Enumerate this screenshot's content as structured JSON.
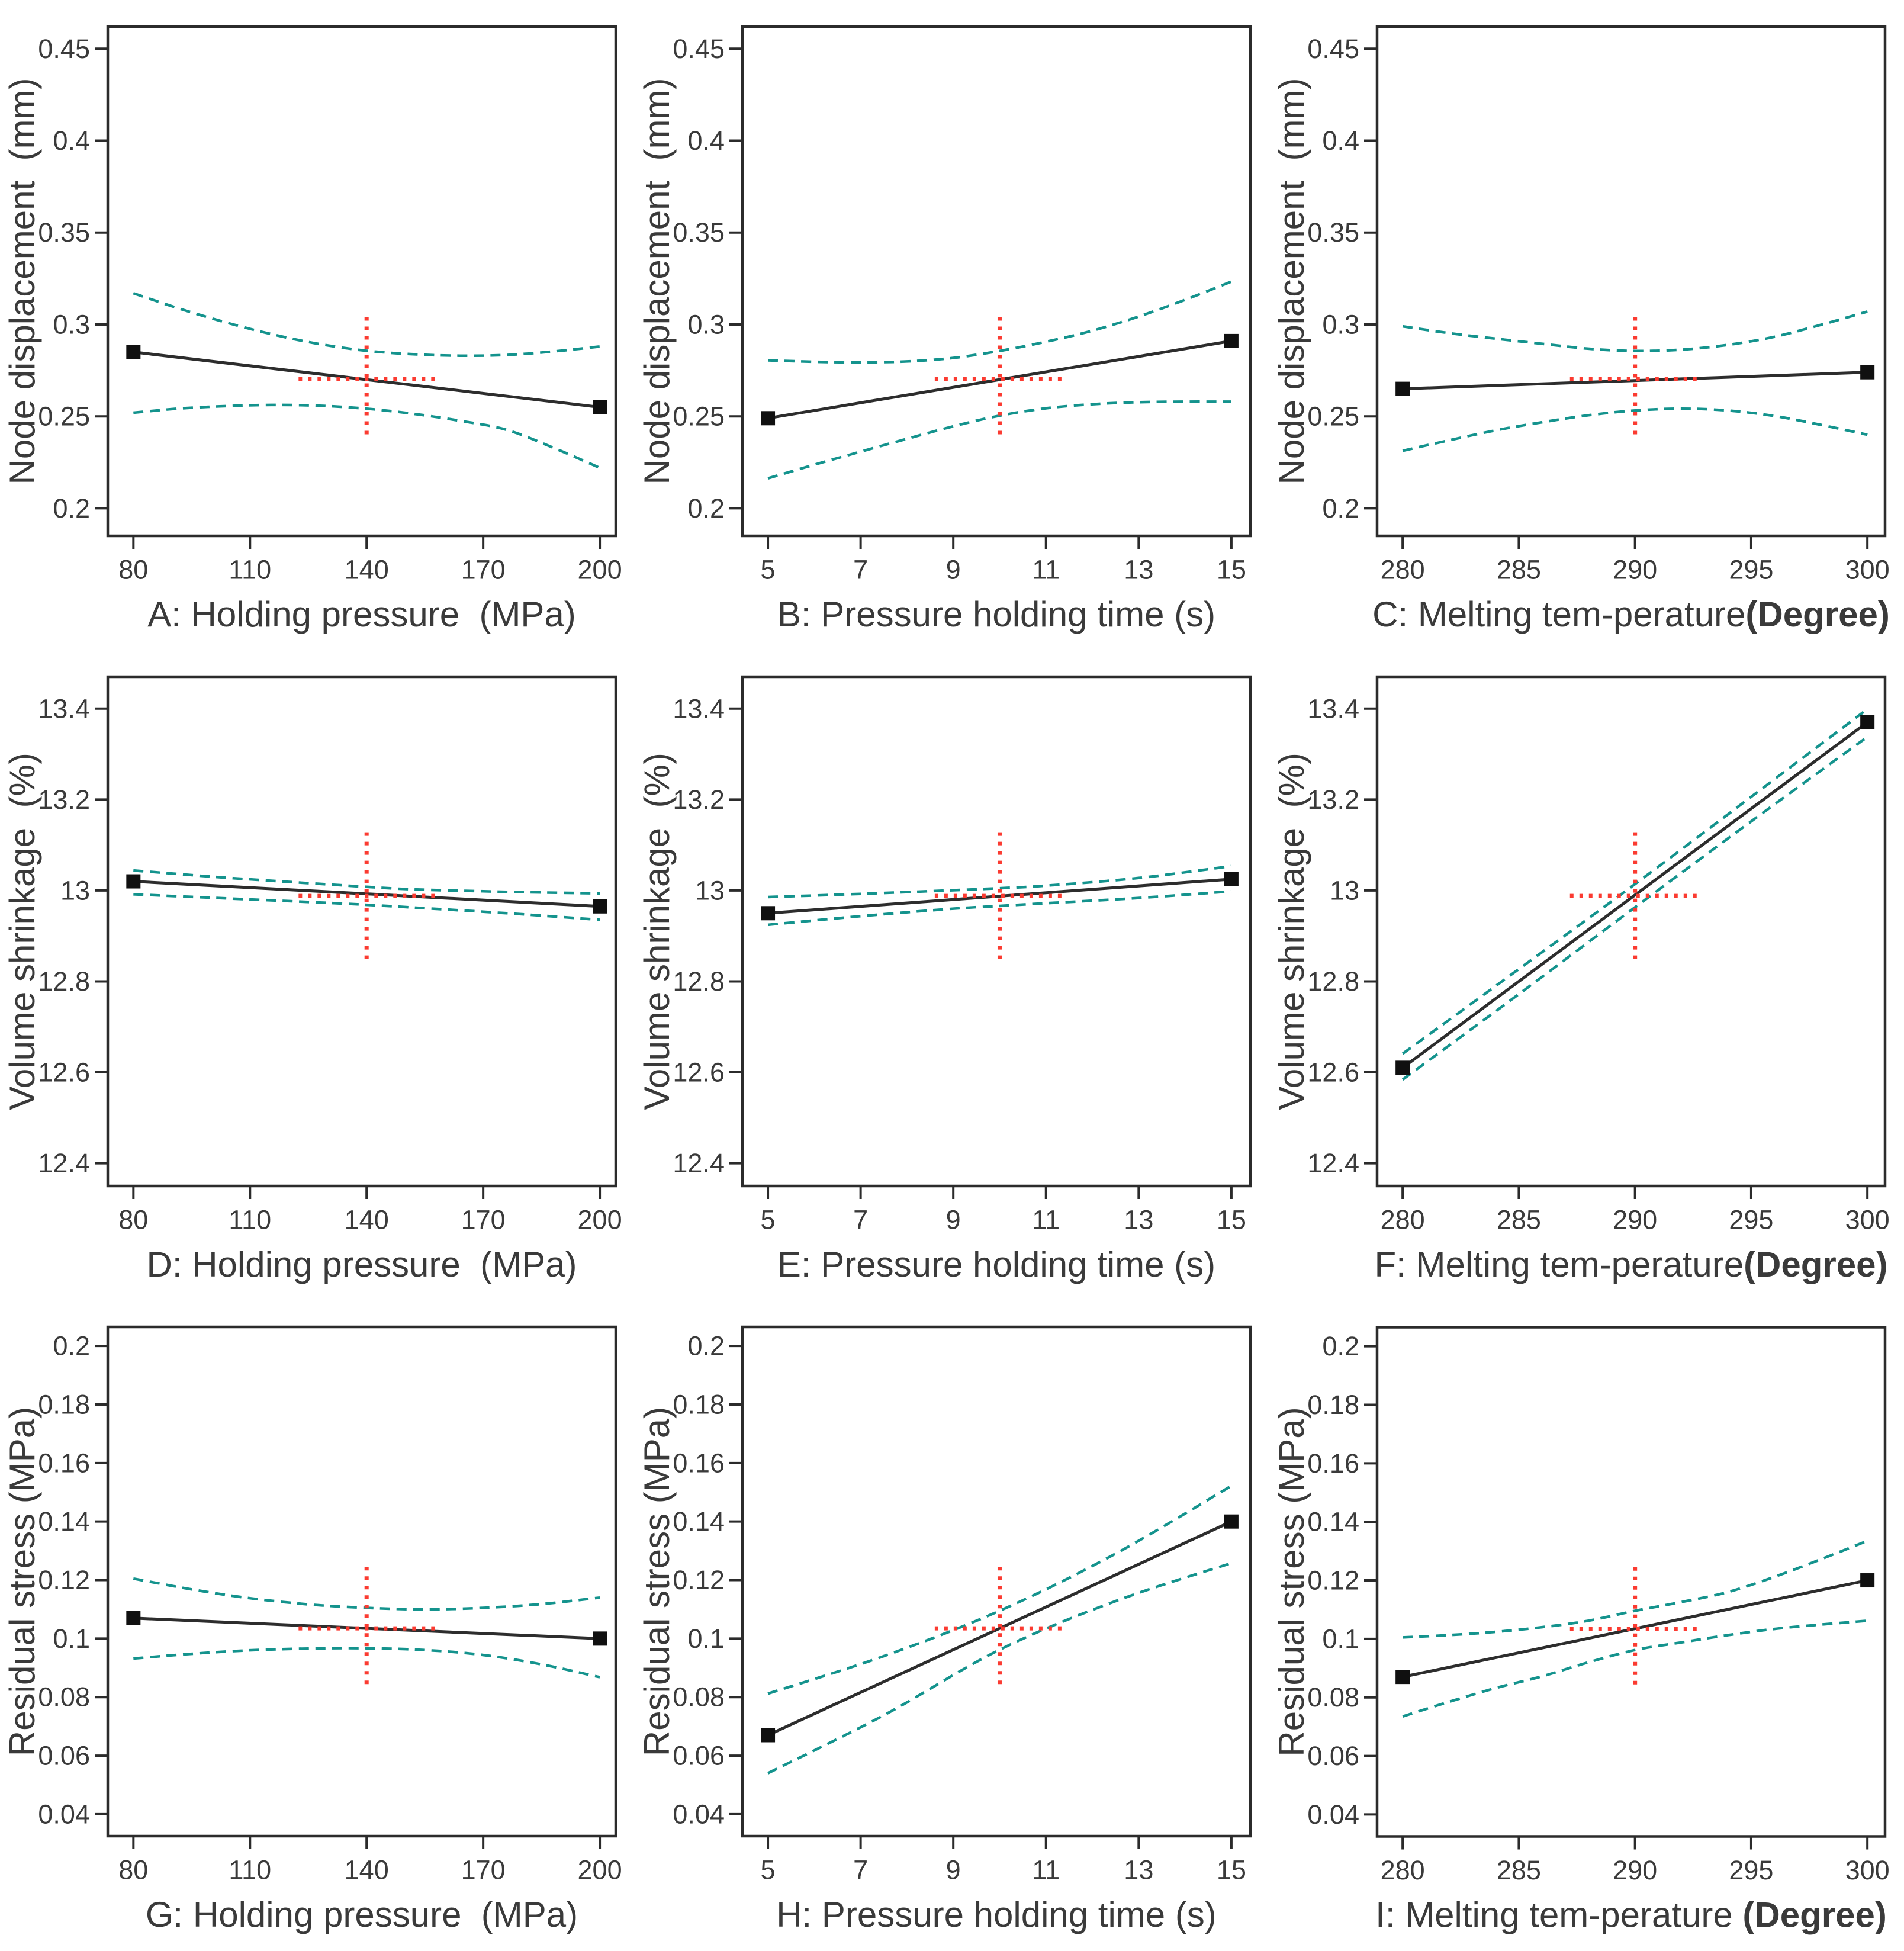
{
  "colors": {
    "background": "#ffffff",
    "axis": "#2b2b2b",
    "text": "#3a3a3a",
    "effect_line": "#2d2d2d",
    "marker": "#101010",
    "confidence_band": "#14938d",
    "crosshair": "#fb3b31"
  },
  "chart_data": [
    {
      "id": "A",
      "type": "line",
      "xlabel": "A: Holding pressure  (MPa)",
      "xlabel_bold": "",
      "ylabel": "Node displacement  (mm)",
      "xlim": [
        73.4,
        204.1
      ],
      "ylim": [
        0.185,
        0.462
      ],
      "xticks": [
        80,
        110,
        140,
        170,
        200
      ],
      "yticks": [
        [
          "0.2",
          0.2
        ],
        [
          "0.25",
          0.25
        ],
        [
          "0.3",
          0.3
        ],
        [
          "0.35",
          0.35
        ],
        [
          "0.4",
          0.4
        ],
        [
          "0.45",
          0.45
        ]
      ],
      "effect_line": {
        "x": [
          80,
          200
        ],
        "y": [
          0.285,
          0.255
        ]
      },
      "ci_upper": [
        [
          80,
          0.317
        ],
        [
          92,
          0.3085
        ],
        [
          104,
          0.301
        ],
        [
          116,
          0.2945
        ],
        [
          128,
          0.2893
        ],
        [
          140,
          0.2857
        ],
        [
          152,
          0.2838
        ],
        [
          164,
          0.283
        ],
        [
          176,
          0.2834
        ],
        [
          188,
          0.2853
        ],
        [
          200,
          0.288
        ]
      ],
      "ci_lower": [
        [
          80,
          0.252
        ],
        [
          92,
          0.2543
        ],
        [
          104,
          0.2556
        ],
        [
          116,
          0.2562
        ],
        [
          128,
          0.2558
        ],
        [
          140,
          0.2542
        ],
        [
          152,
          0.2514
        ],
        [
          164,
          0.2476
        ],
        [
          176,
          0.2427
        ],
        [
          188,
          0.233
        ],
        [
          200,
          0.222
        ]
      ],
      "center": {
        "x": 140,
        "y": 0.2705,
        "half_width": 17.5,
        "half_height": 0.0335
      }
    },
    {
      "id": "B",
      "type": "line",
      "xlabel": "B: Pressure holding time (s)",
      "xlabel_bold": "",
      "ylabel": "Node displacement  (mm)",
      "xlim": [
        4.45,
        15.41
      ],
      "ylim": [
        0.185,
        0.462
      ],
      "xticks": [
        5,
        7,
        9,
        11,
        13,
        15
      ],
      "yticks": [
        [
          "0.2",
          0.2
        ],
        [
          "0.25",
          0.25
        ],
        [
          "0.3",
          0.3
        ],
        [
          "0.35",
          0.35
        ],
        [
          "0.4",
          0.4
        ],
        [
          "0.45",
          0.45
        ]
      ],
      "effect_line": {
        "x": [
          5,
          15
        ],
        "y": [
          0.249,
          0.291
        ]
      },
      "ci_upper": [
        [
          5,
          0.2805
        ],
        [
          6,
          0.2797
        ],
        [
          7,
          0.2794
        ],
        [
          8,
          0.2799
        ],
        [
          9,
          0.2818
        ],
        [
          10,
          0.2856
        ],
        [
          11,
          0.2906
        ],
        [
          12,
          0.2966
        ],
        [
          13,
          0.3043
        ],
        [
          14,
          0.3134
        ],
        [
          15,
          0.3233
        ]
      ],
      "ci_lower": [
        [
          5,
          0.2163
        ],
        [
          6,
          0.2237
        ],
        [
          7,
          0.2308
        ],
        [
          8,
          0.2378
        ],
        [
          9,
          0.2446
        ],
        [
          10,
          0.2504
        ],
        [
          11,
          0.2544
        ],
        [
          12,
          0.2566
        ],
        [
          13,
          0.2577
        ],
        [
          14,
          0.258
        ],
        [
          15,
          0.258
        ]
      ],
      "center": {
        "x": 10,
        "y": 0.2705,
        "half_width": 1.4,
        "half_height": 0.0335
      }
    },
    {
      "id": "C",
      "type": "line",
      "xlabel": "C: Melting tem-perature",
      "xlabel_bold": "(Degree)",
      "ylabel": "Node displacement  (mm)",
      "xlim": [
        278.9,
        300.76
      ],
      "ylim": [
        0.185,
        0.462
      ],
      "xticks": [
        280,
        285,
        290,
        295,
        300
      ],
      "yticks": [
        [
          "0.2",
          0.2
        ],
        [
          "0.25",
          0.25
        ],
        [
          "0.3",
          0.3
        ],
        [
          "0.35",
          0.35
        ],
        [
          "0.4",
          0.4
        ],
        [
          "0.45",
          0.45
        ]
      ],
      "effect_line": {
        "x": [
          280,
          300
        ],
        "y": [
          0.265,
          0.274
        ]
      },
      "ci_upper": [
        [
          280,
          0.299
        ],
        [
          282,
          0.2953
        ],
        [
          284,
          0.2923
        ],
        [
          286,
          0.2895
        ],
        [
          288,
          0.2868
        ],
        [
          290,
          0.2856
        ],
        [
          292,
          0.2863
        ],
        [
          294,
          0.2889
        ],
        [
          296,
          0.2933
        ],
        [
          298,
          0.2998
        ],
        [
          300,
          0.307
        ]
      ],
      "ci_lower": [
        [
          280,
          0.2313
        ],
        [
          282,
          0.237
        ],
        [
          284,
          0.2424
        ],
        [
          286,
          0.2468
        ],
        [
          288,
          0.2506
        ],
        [
          290,
          0.2532
        ],
        [
          292,
          0.2542
        ],
        [
          294,
          0.2532
        ],
        [
          296,
          0.2502
        ],
        [
          298,
          0.2454
        ],
        [
          300,
          0.24
        ]
      ],
      "center": {
        "x": 290,
        "y": 0.2705,
        "half_width": 2.8,
        "half_height": 0.0335
      }
    },
    {
      "id": "D",
      "type": "line",
      "xlabel": "D: Holding pressure  (MPa)",
      "xlabel_bold": "",
      "ylabel": "Volume shrinkage  (%)",
      "xlim": [
        73.4,
        204.1
      ],
      "ylim": [
        12.35,
        13.47
      ],
      "xticks": [
        80,
        110,
        140,
        170,
        200
      ],
      "yticks": [
        [
          "12.4",
          12.4
        ],
        [
          "12.6",
          12.6
        ],
        [
          "12.8",
          12.8
        ],
        [
          "13",
          13.0
        ],
        [
          "13.2",
          13.2
        ],
        [
          "13.4",
          13.4
        ]
      ],
      "effect_line": {
        "x": [
          80,
          200
        ],
        "y": [
          13.02,
          12.965
        ]
      },
      "ci_upper": [
        [
          80,
          13.044
        ],
        [
          104,
          13.028
        ],
        [
          128,
          13.0145
        ],
        [
          140,
          13.008
        ],
        [
          152,
          13.0025
        ],
        [
          176,
          12.997
        ],
        [
          200,
          12.9935
        ]
      ],
      "ci_lower": [
        [
          80,
          12.9915
        ],
        [
          104,
          12.9825
        ],
        [
          128,
          12.9735
        ],
        [
          140,
          12.9685
        ],
        [
          152,
          12.9625
        ],
        [
          176,
          12.95
        ],
        [
          200,
          12.9355
        ]
      ],
      "center": {
        "x": 140,
        "y": 12.988,
        "half_width": 17.5,
        "half_height": 0.14
      }
    },
    {
      "id": "E",
      "type": "line",
      "xlabel": "E: Pressure holding time (s)",
      "xlabel_bold": "",
      "ylabel": "Volume shrinkage  (%)",
      "xlim": [
        4.45,
        15.41
      ],
      "ylim": [
        12.35,
        13.47
      ],
      "xticks": [
        5,
        7,
        9,
        11,
        13,
        15
      ],
      "yticks": [
        [
          "12.4",
          12.4
        ],
        [
          "12.6",
          12.6
        ],
        [
          "12.8",
          12.8
        ],
        [
          "13",
          13.0
        ],
        [
          "13.2",
          13.2
        ],
        [
          "13.4",
          13.4
        ]
      ],
      "effect_line": {
        "x": [
          5,
          15
        ],
        "y": [
          12.95,
          13.025
        ]
      },
      "ci_upper": [
        [
          5,
          12.9855
        ],
        [
          7,
          12.9925
        ],
        [
          9,
          13.0005
        ],
        [
          10,
          13.005
        ],
        [
          11,
          13.0105
        ],
        [
          13,
          13.0275
        ],
        [
          15,
          13.0535
        ]
      ],
      "ci_lower": [
        [
          5,
          12.9245
        ],
        [
          7,
          12.9435
        ],
        [
          9,
          12.96
        ],
        [
          10,
          12.966
        ],
        [
          11,
          12.972
        ],
        [
          13,
          12.9835
        ],
        [
          15,
          12.998
        ]
      ],
      "center": {
        "x": 10,
        "y": 12.988,
        "half_width": 1.4,
        "half_height": 0.14
      }
    },
    {
      "id": "F",
      "type": "line",
      "xlabel": "F: Melting tem-perature",
      "xlabel_bold": "(Degree)",
      "ylabel": "Volume shrinkage  (%)",
      "xlim": [
        278.9,
        300.76
      ],
      "ylim": [
        12.35,
        13.47
      ],
      "xticks": [
        280,
        285,
        290,
        295,
        300
      ],
      "yticks": [
        [
          "12.4",
          12.4
        ],
        [
          "12.6",
          12.6
        ],
        [
          "12.8",
          12.8
        ],
        [
          "13",
          13.0
        ],
        [
          "13.2",
          13.2
        ],
        [
          "13.4",
          13.4
        ]
      ],
      "effect_line": {
        "x": [
          280,
          300
        ],
        "y": [
          12.61,
          13.37
        ]
      },
      "ci_upper": [
        [
          280,
          12.641
        ],
        [
          285,
          12.827
        ],
        [
          290,
          13.014
        ],
        [
          295,
          13.206
        ],
        [
          300,
          13.399
        ]
      ],
      "ci_lower": [
        [
          280,
          12.584
        ],
        [
          285,
          12.772
        ],
        [
          290,
          12.963
        ],
        [
          295,
          13.152
        ],
        [
          300,
          13.338
        ]
      ],
      "center": {
        "x": 290,
        "y": 12.988,
        "half_width": 2.8,
        "half_height": 0.14
      }
    },
    {
      "id": "G",
      "type": "line",
      "xlabel": "G: Holding pressure  (MPa)",
      "xlabel_bold": "",
      "ylabel": "Residual stress (MPa)",
      "xlim": [
        73.4,
        204.1
      ],
      "ylim": [
        0.0325,
        0.2065
      ],
      "xticks": [
        80,
        110,
        140,
        170,
        200
      ],
      "yticks": [
        [
          "0.04",
          0.04
        ],
        [
          "0.06",
          0.06
        ],
        [
          "0.08",
          0.08
        ],
        [
          "0.1",
          0.1
        ],
        [
          "0.12",
          0.12
        ],
        [
          "0.14",
          0.14
        ],
        [
          "0.16",
          0.16
        ],
        [
          "0.18",
          0.18
        ],
        [
          "0.2",
          0.2
        ]
      ],
      "effect_line": {
        "x": [
          80,
          200
        ],
        "y": [
          0.107,
          0.1
        ]
      },
      "ci_upper": [
        [
          80,
          0.1205
        ],
        [
          95,
          0.1168
        ],
        [
          110,
          0.1138
        ],
        [
          125,
          0.1117
        ],
        [
          140,
          0.1105
        ],
        [
          155,
          0.11
        ],
        [
          170,
          0.1105
        ],
        [
          185,
          0.1118
        ],
        [
          200,
          0.114
        ]
      ],
      "ci_lower": [
        [
          80,
          0.0932
        ],
        [
          95,
          0.0948
        ],
        [
          110,
          0.096
        ],
        [
          125,
          0.0966
        ],
        [
          140,
          0.0967
        ],
        [
          155,
          0.0961
        ],
        [
          170,
          0.0944
        ],
        [
          185,
          0.0912
        ],
        [
          200,
          0.0868
        ]
      ],
      "center": {
        "x": 140,
        "y": 0.1035,
        "half_width": 17.5,
        "half_height": 0.021
      }
    },
    {
      "id": "H",
      "type": "line",
      "xlabel": "H: Pressure holding time (s)",
      "xlabel_bold": "",
      "ylabel": "Residual stress (MPa)",
      "xlim": [
        4.45,
        15.41
      ],
      "ylim": [
        0.0325,
        0.2065
      ],
      "xticks": [
        5,
        7,
        9,
        11,
        13,
        15
      ],
      "yticks": [
        [
          "0.04",
          0.04
        ],
        [
          "0.06",
          0.06
        ],
        [
          "0.08",
          0.08
        ],
        [
          "0.1",
          0.1
        ],
        [
          "0.12",
          0.12
        ],
        [
          "0.14",
          0.14
        ],
        [
          "0.16",
          0.16
        ],
        [
          "0.18",
          0.18
        ],
        [
          "0.2",
          0.2
        ]
      ],
      "effect_line": {
        "x": [
          5,
          15
        ],
        "y": [
          0.067,
          0.14
        ]
      },
      "ci_upper": [
        [
          5,
          0.0812
        ],
        [
          7.5,
          0.094
        ],
        [
          10,
          0.1095
        ],
        [
          12.5,
          0.129
        ],
        [
          15,
          0.1522
        ]
      ],
      "ci_lower": [
        [
          5,
          0.054
        ],
        [
          7.5,
          0.0738
        ],
        [
          10,
          0.0962
        ],
        [
          12.5,
          0.1128
        ],
        [
          15,
          0.1258
        ]
      ],
      "center": {
        "x": 10,
        "y": 0.1035,
        "half_width": 1.4,
        "half_height": 0.021
      }
    },
    {
      "id": "I",
      "type": "line",
      "xlabel": "I: Melting tem-perature",
      "xlabel_bold": " (Degree)",
      "ylabel": "Residual stress (MPa)",
      "xlim": [
        278.9,
        300.76
      ],
      "ylim": [
        0.0325,
        0.2065
      ],
      "xticks": [
        280,
        285,
        290,
        295,
        300
      ],
      "yticks": [
        [
          "0.04",
          0.04
        ],
        [
          "0.06",
          0.06
        ],
        [
          "0.08",
          0.08
        ],
        [
          "0.1",
          0.1
        ],
        [
          "0.12",
          0.12
        ],
        [
          "0.14",
          0.14
        ],
        [
          "0.16",
          0.16
        ],
        [
          "0.18",
          0.18
        ],
        [
          "0.2",
          0.2
        ]
      ],
      "effect_line": {
        "x": [
          280,
          300
        ],
        "y": [
          0.087,
          0.12
        ]
      },
      "ci_upper": [
        [
          280,
          0.1005
        ],
        [
          282,
          0.1013
        ],
        [
          284,
          0.1024
        ],
        [
          286,
          0.104
        ],
        [
          288,
          0.1062
        ],
        [
          290,
          0.1096
        ],
        [
          292,
          0.1126
        ],
        [
          294,
          0.116
        ],
        [
          296,
          0.1212
        ],
        [
          298,
          0.1272
        ],
        [
          300,
          0.1335
        ]
      ],
      "ci_lower": [
        [
          280,
          0.0735
        ],
        [
          282,
          0.0785
        ],
        [
          284,
          0.0832
        ],
        [
          286,
          0.0872
        ],
        [
          288,
          0.092
        ],
        [
          290,
          0.0962
        ],
        [
          292,
          0.0988
        ],
        [
          294,
          0.1013
        ],
        [
          296,
          0.1034
        ],
        [
          298,
          0.1049
        ],
        [
          300,
          0.1062
        ]
      ],
      "center": {
        "x": 290,
        "y": 0.1035,
        "half_width": 2.8,
        "half_height": 0.021
      }
    }
  ]
}
